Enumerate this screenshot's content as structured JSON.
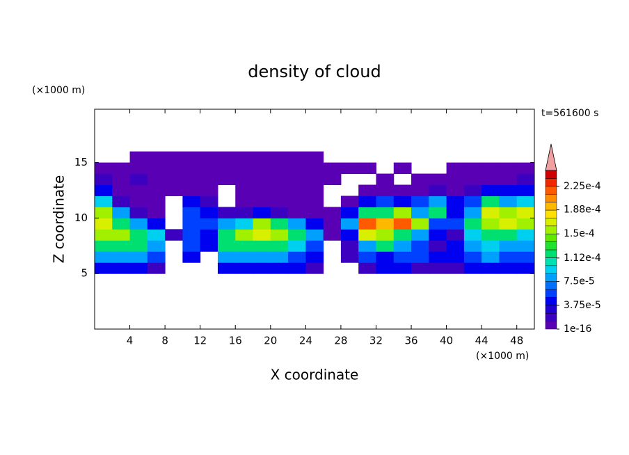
{
  "chart_data": {
    "type": "contour",
    "title": "density of cloud",
    "x_label": "X coordinate",
    "y_label": "Z coordinate",
    "x_unit": "(×1000 m)",
    "y_unit": "(×1000 m)",
    "time_label": "t=561600 s",
    "xlim": [
      0,
      50
    ],
    "ylim": [
      0,
      19.8
    ],
    "xticks": [
      4,
      8,
      12,
      16,
      20,
      24,
      28,
      32,
      36,
      40,
      44,
      48
    ],
    "yticks": [
      5,
      10,
      15
    ],
    "x": [
      1,
      3,
      5,
      7,
      9,
      11,
      13,
      15,
      17,
      19,
      21,
      23,
      25,
      27,
      29,
      31,
      33,
      35,
      37,
      39,
      41,
      43,
      45,
      47,
      49
    ],
    "y": [
      5.5,
      6.5,
      7.5,
      8.5,
      9.5,
      10.5,
      11.5,
      12.5,
      13.5,
      14.5,
      15.5
    ],
    "z": [
      [
        4e-05,
        4e-05,
        4e-05,
        2e-05,
        null,
        null,
        null,
        4e-05,
        4e-05,
        4e-05,
        4e-05,
        4e-05,
        2e-05,
        null,
        null,
        2e-05,
        4e-05,
        4e-05,
        2e-05,
        2e-05,
        2e-05,
        4e-05,
        4e-05,
        4e-05,
        4e-05
      ],
      [
        8e-05,
        8e-05,
        8e-05,
        6e-05,
        null,
        4e-05,
        null,
        8e-05,
        8e-05,
        8e-05,
        8e-05,
        6e-05,
        4e-05,
        null,
        2e-05,
        6e-05,
        4e-05,
        6e-05,
        6e-05,
        4e-05,
        4e-05,
        6e-05,
        8e-05,
        6e-05,
        6e-05
      ],
      [
        0.000115,
        0.000115,
        0.000115,
        8e-05,
        null,
        6e-05,
        4e-05,
        0.000115,
        0.000115,
        0.000115,
        0.000115,
        9.5e-05,
        6e-05,
        null,
        2e-05,
        8e-05,
        0.000115,
        8e-05,
        6e-05,
        2e-05,
        4e-05,
        8e-05,
        9.5e-05,
        8e-05,
        8e-05
      ],
      [
        0.000155,
        0.000155,
        0.000115,
        9.5e-05,
        2e-05,
        6e-05,
        4e-05,
        0.000115,
        0.000155,
        0.00017,
        0.000155,
        0.000115,
        8e-05,
        5e-06,
        4e-05,
        0.00017,
        0.000155,
        0.000115,
        8e-05,
        4e-05,
        2e-05,
        9.5e-05,
        0.000115,
        0.000115,
        9.5e-05
      ],
      [
        0.00017,
        0.000115,
        8e-05,
        4e-05,
        null,
        6e-05,
        6e-05,
        8e-05,
        9.5e-05,
        0.000155,
        0.000115,
        8e-05,
        4e-05,
        5e-06,
        8e-05,
        0.00022,
        0.00019,
        0.00022,
        0.000155,
        6e-05,
        6e-05,
        0.000115,
        0.000155,
        0.00017,
        0.000155
      ],
      [
        0.000155,
        8e-05,
        2e-05,
        5e-06,
        null,
        6e-05,
        4e-05,
        2e-05,
        2e-05,
        4e-05,
        2e-05,
        5e-06,
        5e-06,
        5e-06,
        4e-05,
        0.000115,
        0.000115,
        0.000155,
        8e-05,
        0.000115,
        4e-05,
        8e-05,
        0.00017,
        0.000155,
        0.00017
      ],
      [
        9.5e-05,
        2e-05,
        5e-06,
        5e-06,
        null,
        4e-05,
        2e-05,
        null,
        5e-06,
        5e-06,
        5e-06,
        5e-06,
        5e-06,
        null,
        5e-06,
        4e-05,
        6e-05,
        4e-05,
        6e-05,
        8e-05,
        4e-05,
        6e-05,
        0.000115,
        8e-05,
        9.5e-05
      ],
      [
        4e-05,
        5e-06,
        5e-06,
        5e-06,
        5e-06,
        5e-06,
        5e-06,
        null,
        5e-06,
        5e-06,
        5e-06,
        5e-06,
        5e-06,
        null,
        null,
        5e-06,
        5e-06,
        5e-06,
        5e-06,
        2e-05,
        5e-06,
        2e-05,
        4e-05,
        4e-05,
        4e-05
      ],
      [
        2e-05,
        5e-06,
        2e-05,
        5e-06,
        5e-06,
        5e-06,
        5e-06,
        5e-06,
        5e-06,
        5e-06,
        5e-06,
        5e-06,
        5e-06,
        5e-06,
        null,
        null,
        5e-06,
        null,
        5e-06,
        5e-06,
        5e-06,
        5e-06,
        5e-06,
        5e-06,
        2e-05
      ],
      [
        5e-06,
        5e-06,
        5e-06,
        5e-06,
        5e-06,
        5e-06,
        5e-06,
        5e-06,
        5e-06,
        5e-06,
        5e-06,
        5e-06,
        5e-06,
        5e-06,
        5e-06,
        5e-06,
        null,
        5e-06,
        null,
        null,
        5e-06,
        5e-06,
        5e-06,
        5e-06,
        5e-06
      ],
      [
        null,
        null,
        5e-06,
        5e-06,
        5e-06,
        5e-06,
        5e-06,
        5e-06,
        5e-06,
        5e-06,
        5e-06,
        5e-06,
        5e-06,
        null,
        null,
        null,
        null,
        null,
        null,
        null,
        null,
        null,
        null,
        null,
        null
      ]
    ],
    "levels": [
      1e-16,
      1.25e-05,
      2.5e-05,
      3.75e-05,
      5e-05,
      6.25e-05,
      7.5e-05,
      8.75e-05,
      0.0001,
      0.0001125,
      0.000125,
      0.0001375,
      0.00015,
      0.0001625,
      0.000175,
      0.0001875,
      0.0002,
      0.0002125,
      0.000225,
      0.0002375,
      0.00025
    ],
    "colors": [
      "#5a00b4",
      "#3c00c0",
      "#1e00d2",
      "#0000f0",
      "#0040ff",
      "#0070ff",
      "#00a0ff",
      "#00d0f0",
      "#00e0b0",
      "#00e070",
      "#20e030",
      "#60e800",
      "#a0f000",
      "#d8f000",
      "#ffe000",
      "#ffb800",
      "#ff8c00",
      "#ff5a00",
      "#f02800",
      "#d00000"
    ],
    "over_color": "#f0a0a0",
    "colorbar_ticks": [
      {
        "value": 1e-16,
        "label": "1e-16"
      },
      {
        "value": 3.75e-05,
        "label": "3.75e-5"
      },
      {
        "value": 7.5e-05,
        "label": "7.5e-5"
      },
      {
        "value": 0.000112,
        "label": "1.12e-4"
      },
      {
        "value": 0.00015,
        "label": "1.5e-4"
      },
      {
        "value": 0.000188,
        "label": "1.88e-4"
      },
      {
        "value": 0.000225,
        "label": "2.25e-4"
      }
    ]
  }
}
